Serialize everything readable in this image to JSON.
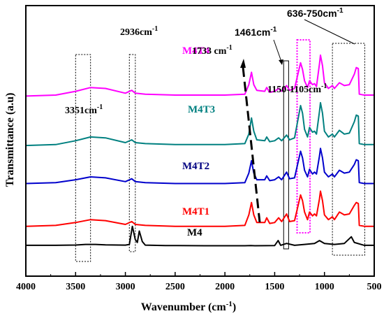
{
  "chart_data": {
    "type": "line",
    "xlabel_main": "Wavenumber (cm",
    "xlabel_sup": "-1",
    "xlabel_tail": ")",
    "ylabel": "Transmittance (a.u)",
    "xlim": [
      4000,
      500
    ],
    "x_reversed": true,
    "xticks": [
      4000,
      3500,
      3000,
      2500,
      2000,
      1500,
      1000,
      500
    ],
    "xtick_labels": [
      "4000",
      "3500",
      "3000",
      "2500",
      "2000",
      "1500",
      "1000",
      "500"
    ],
    "y_ticks_shown": false,
    "series": [
      {
        "name": "M4",
        "color": "#000000",
        "points": [
          [
            4000,
            0.3
          ],
          [
            3700,
            0.3
          ],
          [
            3500,
            0.33
          ],
          [
            3400,
            0.4
          ],
          [
            3300,
            0.4
          ],
          [
            3200,
            0.35
          ],
          [
            3000,
            0.32
          ],
          [
            2960,
            0.4
          ],
          [
            2930,
            2.3
          ],
          [
            2900,
            0.9
          ],
          [
            2880,
            0.6
          ],
          [
            2860,
            1.8
          ],
          [
            2830,
            0.7
          ],
          [
            2800,
            0.32
          ],
          [
            2600,
            0.28
          ],
          [
            2200,
            0.26
          ],
          [
            1800,
            0.26
          ],
          [
            1740,
            0.28
          ],
          [
            1700,
            0.26
          ],
          [
            1500,
            0.28
          ],
          [
            1465,
            0.8
          ],
          [
            1440,
            0.3
          ],
          [
            1380,
            0.5
          ],
          [
            1300,
            0.3
          ],
          [
            1200,
            0.4
          ],
          [
            1100,
            0.5
          ],
          [
            1050,
            0.8
          ],
          [
            1000,
            0.5
          ],
          [
            900,
            0.4
          ],
          [
            800,
            0.5
          ],
          [
            730,
            1.2
          ],
          [
            700,
            0.6
          ],
          [
            600,
            0.3
          ],
          [
            500,
            0.3
          ]
        ]
      },
      {
        "name": "M4T1",
        "color": "#ff0000",
        "points": [
          [
            4000,
            2.3
          ],
          [
            3700,
            2.4
          ],
          [
            3500,
            2.7
          ],
          [
            3350,
            3.0
          ],
          [
            3200,
            2.9
          ],
          [
            3000,
            2.5
          ],
          [
            2936,
            2.8
          ],
          [
            2900,
            2.5
          ],
          [
            2800,
            2.4
          ],
          [
            2500,
            2.3
          ],
          [
            2000,
            2.3
          ],
          [
            1800,
            2.4
          ],
          [
            1760,
            3.5
          ],
          [
            1733,
            4.8
          ],
          [
            1710,
            3.5
          ],
          [
            1680,
            2.7
          ],
          [
            1600,
            2.7
          ],
          [
            1580,
            3.2
          ],
          [
            1550,
            2.6
          ],
          [
            1500,
            2.7
          ],
          [
            1460,
            3.2
          ],
          [
            1430,
            2.8
          ],
          [
            1380,
            3.6
          ],
          [
            1350,
            2.8
          ],
          [
            1300,
            2.9
          ],
          [
            1240,
            5.6
          ],
          [
            1220,
            5.0
          ],
          [
            1200,
            3.8
          ],
          [
            1170,
            3.0
          ],
          [
            1150,
            3.8
          ],
          [
            1120,
            3.4
          ],
          [
            1100,
            3.6
          ],
          [
            1080,
            3.4
          ],
          [
            1050,
            5.2
          ],
          [
            1040,
            6.0
          ],
          [
            1020,
            5.0
          ],
          [
            1000,
            3.5
          ],
          [
            960,
            3.0
          ],
          [
            920,
            3.3
          ],
          [
            900,
            3.0
          ],
          [
            850,
            3.8
          ],
          [
            800,
            3.5
          ],
          [
            750,
            3.6
          ],
          [
            700,
            4.5
          ],
          [
            680,
            4.8
          ],
          [
            660,
            4.7
          ],
          [
            650,
            2.4
          ],
          [
            600,
            2.3
          ],
          [
            500,
            2.3
          ]
        ]
      },
      {
        "name": "M4T2",
        "color": "#0000cc",
        "points": [
          [
            4000,
            6.8
          ],
          [
            3700,
            6.9
          ],
          [
            3500,
            7.2
          ],
          [
            3350,
            7.5
          ],
          [
            3200,
            7.4
          ],
          [
            3000,
            7.0
          ],
          [
            2936,
            7.3
          ],
          [
            2900,
            7.0
          ],
          [
            2800,
            6.9
          ],
          [
            2500,
            6.8
          ],
          [
            2000,
            6.8
          ],
          [
            1800,
            6.9
          ],
          [
            1760,
            7.9
          ],
          [
            1733,
            9.2
          ],
          [
            1710,
            7.9
          ],
          [
            1680,
            7.2
          ],
          [
            1600,
            7.2
          ],
          [
            1580,
            7.6
          ],
          [
            1550,
            7.1
          ],
          [
            1500,
            7.2
          ],
          [
            1460,
            7.5
          ],
          [
            1430,
            7.2
          ],
          [
            1380,
            8.0
          ],
          [
            1350,
            7.3
          ],
          [
            1300,
            7.4
          ],
          [
            1240,
            10.2
          ],
          [
            1220,
            9.5
          ],
          [
            1200,
            8.2
          ],
          [
            1170,
            7.5
          ],
          [
            1150,
            8.3
          ],
          [
            1120,
            7.8
          ],
          [
            1100,
            8.0
          ],
          [
            1080,
            7.8
          ],
          [
            1050,
            9.7
          ],
          [
            1040,
            10.5
          ],
          [
            1020,
            9.5
          ],
          [
            1000,
            8.0
          ],
          [
            960,
            7.5
          ],
          [
            920,
            7.8
          ],
          [
            900,
            7.5
          ],
          [
            850,
            8.2
          ],
          [
            800,
            7.9
          ],
          [
            750,
            8.0
          ],
          [
            700,
            8.8
          ],
          [
            680,
            9.3
          ],
          [
            660,
            9.2
          ],
          [
            650,
            6.9
          ],
          [
            600,
            6.8
          ],
          [
            500,
            6.8
          ]
        ]
      },
      {
        "name": "M4T3",
        "color": "#008080",
        "points": [
          [
            4000,
            10.8
          ],
          [
            3700,
            10.9
          ],
          [
            3500,
            11.3
          ],
          [
            3350,
            11.7
          ],
          [
            3200,
            11.6
          ],
          [
            3000,
            11.1
          ],
          [
            2936,
            11.4
          ],
          [
            2900,
            11.1
          ],
          [
            2800,
            11.0
          ],
          [
            2500,
            10.9
          ],
          [
            2000,
            10.9
          ],
          [
            1800,
            11.0
          ],
          [
            1760,
            12.0
          ],
          [
            1733,
            13.7
          ],
          [
            1710,
            12.3
          ],
          [
            1680,
            11.4
          ],
          [
            1600,
            11.3
          ],
          [
            1580,
            11.7
          ],
          [
            1550,
            11.2
          ],
          [
            1500,
            11.3
          ],
          [
            1460,
            11.6
          ],
          [
            1430,
            11.3
          ],
          [
            1380,
            11.9
          ],
          [
            1350,
            11.4
          ],
          [
            1300,
            11.6
          ],
          [
            1240,
            15.0
          ],
          [
            1220,
            14.2
          ],
          [
            1200,
            12.5
          ],
          [
            1170,
            11.7
          ],
          [
            1150,
            12.7
          ],
          [
            1120,
            12.2
          ],
          [
            1100,
            12.3
          ],
          [
            1080,
            12.0
          ],
          [
            1050,
            14.4
          ],
          [
            1040,
            15.3
          ],
          [
            1020,
            14.2
          ],
          [
            1000,
            12.3
          ],
          [
            960,
            11.7
          ],
          [
            920,
            12.0
          ],
          [
            900,
            11.7
          ],
          [
            850,
            12.4
          ],
          [
            800,
            12.0
          ],
          [
            750,
            12.1
          ],
          [
            700,
            13.3
          ],
          [
            680,
            14.0
          ],
          [
            660,
            13.9
          ],
          [
            650,
            11.0
          ],
          [
            600,
            10.9
          ],
          [
            500,
            10.9
          ]
        ]
      },
      {
        "name": "M4T4",
        "color": "#ff00ff",
        "points": [
          [
            4000,
            16.0
          ],
          [
            3700,
            16.1
          ],
          [
            3500,
            16.5
          ],
          [
            3350,
            16.9
          ],
          [
            3200,
            16.8
          ],
          [
            3000,
            16.3
          ],
          [
            2936,
            16.6
          ],
          [
            2900,
            16.3
          ],
          [
            2800,
            16.2
          ],
          [
            2500,
            16.1
          ],
          [
            2000,
            16.1
          ],
          [
            1800,
            16.2
          ],
          [
            1760,
            17.2
          ],
          [
            1733,
            18.5
          ],
          [
            1710,
            17.2
          ],
          [
            1680,
            16.6
          ],
          [
            1600,
            16.5
          ],
          [
            1580,
            16.9
          ],
          [
            1550,
            16.4
          ],
          [
            1500,
            16.5
          ],
          [
            1460,
            16.8
          ],
          [
            1430,
            16.5
          ],
          [
            1380,
            17.1
          ],
          [
            1350,
            16.6
          ],
          [
            1300,
            16.8
          ],
          [
            1240,
            19.5
          ],
          [
            1220,
            18.8
          ],
          [
            1200,
            17.6
          ],
          [
            1170,
            16.9
          ],
          [
            1150,
            17.6
          ],
          [
            1120,
            17.2
          ],
          [
            1100,
            17.3
          ],
          [
            1080,
            17.0
          ],
          [
            1050,
            19.4
          ],
          [
            1040,
            20.3
          ],
          [
            1020,
            19.2
          ],
          [
            1000,
            17.4
          ],
          [
            960,
            16.8
          ],
          [
            920,
            17.1
          ],
          [
            900,
            16.8
          ],
          [
            850,
            17.4
          ],
          [
            800,
            17.1
          ],
          [
            750,
            17.2
          ],
          [
            700,
            18.3
          ],
          [
            680,
            19.0
          ],
          [
            660,
            18.9
          ],
          [
            650,
            16.2
          ],
          [
            600,
            16.1
          ],
          [
            500,
            16.1
          ]
        ]
      }
    ],
    "regions": [
      {
        "id": "box-3351",
        "x_from": 3500,
        "x_to": 3350,
        "style": "dotted",
        "color": "#000000"
      },
      {
        "id": "box-2936",
        "x_from": 2960,
        "x_to": 2900,
        "style": "dotted",
        "color": "#000000"
      },
      {
        "id": "box-1461",
        "x_from": 1410,
        "x_to": 1360,
        "style": "solid",
        "color": "#000000"
      },
      {
        "id": "box-1150",
        "x_from": 1275,
        "x_to": 1145,
        "style": "dotted",
        "color": "#ff00ff"
      },
      {
        "id": "box-636-750",
        "x_from": 920,
        "x_to": 595,
        "style": "dotted",
        "color": "#000000"
      }
    ],
    "annotations": {
      "a3351": "3351cm",
      "a2936": "2936cm",
      "a1733": "1733 cm",
      "a1461": "1461cm",
      "a1150": "1150-1105cm",
      "a636": "636-750cm",
      "unit_sup": "-1"
    },
    "series_labels": {
      "M4T4": "M4T4",
      "M4T3": "M4T3",
      "M4T2": "M4T2",
      "M4T1": "M4T1",
      "M4": "M4"
    },
    "label_colors": {
      "M4T4": "#ff00ff",
      "M4T3": "#008080",
      "M4T2": "#000080",
      "M4T1": "#ff0000",
      "M4": "#000000"
    }
  }
}
